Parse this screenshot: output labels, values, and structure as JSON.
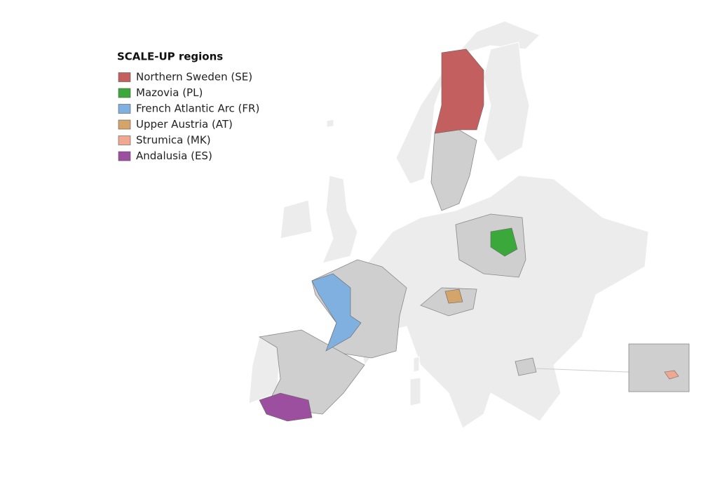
{
  "legend": {
    "title": "SCALE-UP regions",
    "items": [
      {
        "label": "Northern Sweden (SE)",
        "color": "#c45f5f"
      },
      {
        "label": "Mazovia (PL)",
        "color": "#3aa83a"
      },
      {
        "label": "French Atlantic Arc (FR)",
        "color": "#7fb0e0"
      },
      {
        "label": "Upper Austria (AT)",
        "color": "#d4a46a"
      },
      {
        "label": "Strumica (MK)",
        "color": "#f0a890"
      },
      {
        "label": "Andalusia (ES)",
        "color": "#9b4f9e"
      }
    ]
  }
}
